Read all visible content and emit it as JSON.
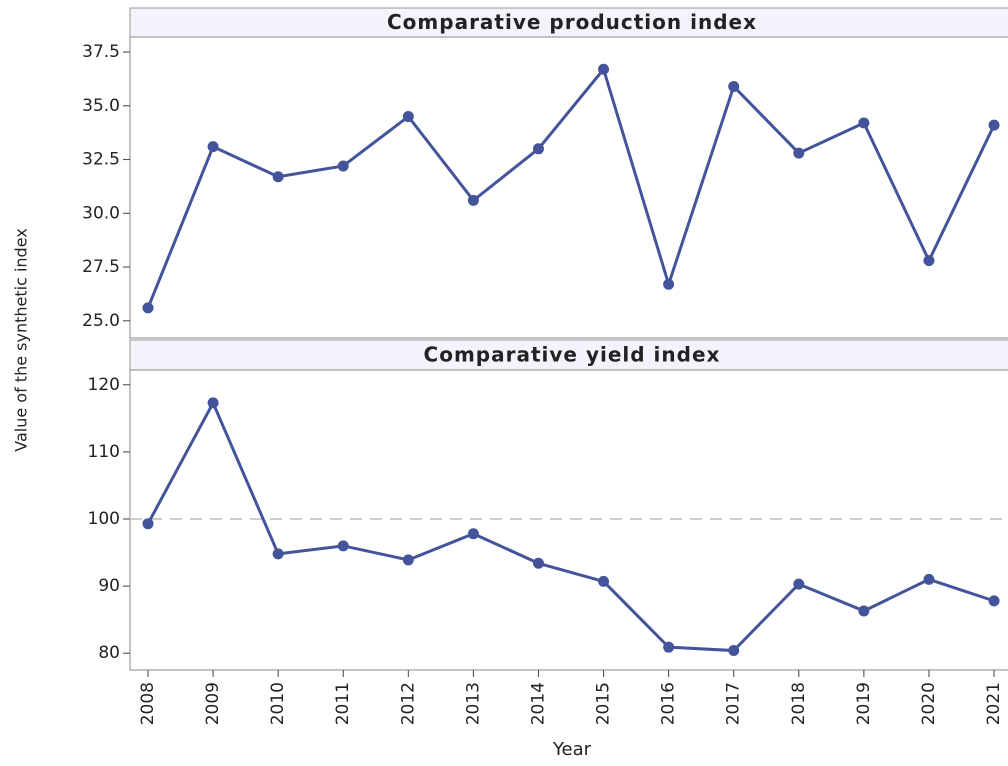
{
  "ylabel": "Value of the synthetic index",
  "chart_data": [
    {
      "type": "line",
      "title": "Comparative production index",
      "color": "#44549a",
      "values": [
        25.6,
        33.1,
        31.7,
        32.2,
        34.5,
        30.6,
        33.0,
        36.7,
        26.7,
        35.9,
        32.8,
        34.2,
        27.8,
        34.1
      ],
      "ylim": [
        24.2,
        38.2
      ],
      "yticks": [
        {
          "value": 25,
          "label": "25.0"
        },
        27.5,
        {
          "value": 30,
          "label": "30.0"
        },
        32.5,
        {
          "value": 35,
          "label": "35.0"
        },
        37.5
      ]
    },
    {
      "type": "line",
      "title": "Comparative yield index",
      "color": "#44549a",
      "values": [
        99.3,
        117.3,
        94.8,
        96.0,
        93.9,
        97.8,
        93.4,
        90.7,
        80.9,
        80.4,
        90.3,
        86.3,
        91.0,
        87.8
      ],
      "ylim": [
        77.5,
        122.2
      ],
      "yticks": [
        80,
        90,
        100,
        110,
        120
      ],
      "reference_line": 100,
      "categories": [
        "2008",
        "2009",
        "2010",
        "2011",
        "2012",
        "2013",
        "2014",
        "2015",
        "2016",
        "2017",
        "2018",
        "2019",
        "2020",
        "2021"
      ],
      "xlabel": "Year"
    }
  ]
}
